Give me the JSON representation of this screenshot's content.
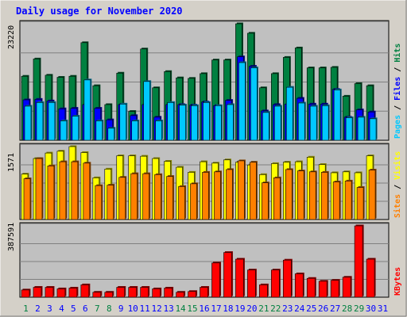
{
  "chart_data": [
    {
      "type": "bar",
      "title": "Daily usage for November 2020",
      "panel": "top",
      "ymax_label": "23220",
      "legend": [
        {
          "name": "Pages",
          "color": "#00c8ff"
        },
        {
          "name": "Files",
          "color": "#0000ff"
        },
        {
          "name": "Hits",
          "color": "#008040"
        }
      ],
      "categories": [
        "1",
        "2",
        "3",
        "4",
        "5",
        "6",
        "7",
        "8",
        "9",
        "10",
        "11",
        "12",
        "13",
        "14",
        "15",
        "16",
        "17",
        "18",
        "19",
        "20",
        "21",
        "22",
        "23",
        "24",
        "25",
        "26",
        "27",
        "28",
        "29",
        "30",
        "31"
      ],
      "series": [
        {
          "name": "Hits",
          "values": [
            12200,
            15500,
            12400,
            12000,
            12200,
            18600,
            10400,
            6800,
            12800,
            5500,
            17400,
            10000,
            13100,
            11900,
            11800,
            12700,
            15300,
            15300,
            22200,
            20400,
            10000,
            12700,
            15800,
            17600,
            13800,
            13800,
            13900,
            8400,
            10800,
            10400,
            0
          ]
        },
        {
          "name": "Files",
          "values": [
            7700,
            7800,
            7500,
            6000,
            6100,
            6800,
            6100,
            3900,
            6800,
            4700,
            6800,
            4400,
            6800,
            6800,
            6700,
            7300,
            6600,
            7600,
            15900,
            14100,
            5600,
            6800,
            6900,
            8000,
            6900,
            6900,
            9700,
            4400,
            5800,
            5400,
            0
          ]
        },
        {
          "name": "Pages",
          "values": [
            6500,
            7200,
            7200,
            3700,
            4600,
            11500,
            3700,
            2300,
            6900,
            3700,
            11200,
            3700,
            7200,
            6700,
            6600,
            7200,
            6600,
            6800,
            14800,
            13800,
            5300,
            6500,
            10100,
            7100,
            6500,
            6600,
            9600,
            4300,
            4400,
            4100,
            0
          ]
        }
      ]
    },
    {
      "type": "bar",
      "panel": "middle",
      "ymax_label": "1571",
      "legend": [
        {
          "name": "Sites",
          "color": "#ff8000"
        },
        {
          "name": "Visits",
          "color": "#ffff00"
        }
      ],
      "categories": [
        "1",
        "2",
        "3",
        "4",
        "5",
        "6",
        "7",
        "8",
        "9",
        "10",
        "11",
        "12",
        "13",
        "14",
        "15",
        "16",
        "17",
        "18",
        "19",
        "20",
        "21",
        "22",
        "23",
        "24",
        "25",
        "26",
        "27",
        "28",
        "29",
        "30",
        "31"
      ],
      "series": [
        {
          "name": "Visits",
          "values": [
            990,
            1330,
            1450,
            1490,
            1590,
            1460,
            910,
            1100,
            1390,
            1390,
            1380,
            1330,
            1270,
            1140,
            1030,
            1260,
            1230,
            1300,
            1250,
            1190,
            980,
            1220,
            1250,
            1260,
            1360,
            1200,
            1020,
            1040,
            1020,
            1390,
            0
          ]
        },
        {
          "name": "Sites",
          "values": [
            890,
            1330,
            1170,
            1260,
            1260,
            1230,
            740,
            750,
            920,
            1000,
            1000,
            980,
            940,
            720,
            780,
            1030,
            1040,
            1090,
            1280,
            1250,
            800,
            910,
            1090,
            1060,
            1040,
            1030,
            820,
            840,
            700,
            1080,
            0
          ]
        }
      ]
    },
    {
      "type": "bar",
      "panel": "bottom",
      "ymax_label": "387591",
      "legend": [
        {
          "name": "KBytes",
          "color": "#ff0000"
        }
      ],
      "categories": [
        "1",
        "2",
        "3",
        "4",
        "5",
        "6",
        "7",
        "8",
        "9",
        "10",
        "11",
        "12",
        "13",
        "14",
        "15",
        "16",
        "17",
        "18",
        "19",
        "20",
        "21",
        "22",
        "23",
        "24",
        "25",
        "26",
        "27",
        "28",
        "29",
        "30",
        "31"
      ],
      "series": [
        {
          "name": "KBytes",
          "values": [
            38000,
            52000,
            52000,
            44000,
            48000,
            65000,
            26000,
            26000,
            52000,
            52000,
            52000,
            44000,
            48000,
            26000,
            30000,
            52000,
            180000,
            235000,
            200000,
            143000,
            65000,
            143000,
            195000,
            123000,
            99000,
            84000,
            89000,
            105000,
            375000,
            200000,
            0
          ]
        }
      ]
    }
  ],
  "x_label_colors": {
    "weekday": "#0000ff",
    "weekend": "#008040"
  },
  "weekend_days": [
    "1",
    "7",
    "8",
    "14",
    "15",
    "21",
    "22",
    "28",
    "29"
  ],
  "colors": {
    "panel": "#c0c0c0",
    "frame": "#d4d0c8",
    "title": "#0000ff",
    "grid": "#808080"
  }
}
